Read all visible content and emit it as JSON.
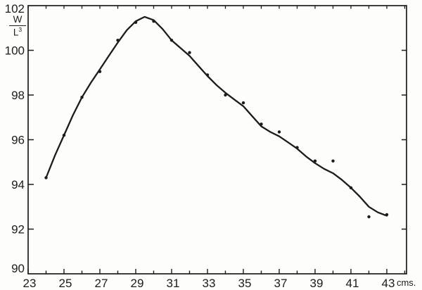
{
  "figure": {
    "background": "#fdfdfb",
    "ink": "#1c1c1c"
  },
  "chart_data": {
    "type": "line",
    "title": "",
    "subtitle": "",
    "x_unit_label": "cms.",
    "y_axis_unit": {
      "numerator": "W",
      "denominator_base": "L",
      "denominator_exponent": "3"
    },
    "xlim": [
      23,
      44.1
    ],
    "ylim": [
      90,
      102
    ],
    "grid": false,
    "legend": null,
    "x_tick_labels": [
      23,
      25,
      27,
      29,
      31,
      33,
      35,
      37,
      39,
      41,
      43
    ],
    "x_minor_ticks": [
      23,
      24,
      25,
      26,
      27,
      28,
      29,
      30,
      31,
      32,
      33,
      34,
      35,
      36,
      37,
      38,
      39,
      40,
      41,
      42,
      43,
      44
    ],
    "y_tick_labels": [
      102,
      100,
      98,
      96,
      94,
      92,
      90
    ],
    "y_side_ticks": [
      100,
      98,
      96,
      94,
      92
    ],
    "points": [
      [
        24,
        94.3
      ],
      [
        25,
        96.2
      ],
      [
        26,
        97.9
      ],
      [
        27,
        99.05
      ],
      [
        28,
        100.45
      ],
      [
        29,
        101.25
      ],
      [
        30,
        101.3
      ],
      [
        31,
        100.45
      ],
      [
        32,
        99.9
      ],
      [
        33,
        98.9
      ],
      [
        34,
        98.0
      ],
      [
        35,
        97.65
      ],
      [
        36,
        96.7
      ],
      [
        37,
        96.35
      ],
      [
        38,
        95.65
      ],
      [
        39,
        95.05
      ],
      [
        40,
        95.05
      ],
      [
        41,
        93.85
      ],
      [
        42,
        92.55
      ],
      [
        43,
        92.65
      ]
    ],
    "curve": [
      [
        24,
        94.3
      ],
      [
        24.5,
        95.3
      ],
      [
        25,
        96.2
      ],
      [
        25.5,
        97.1
      ],
      [
        26,
        97.9
      ],
      [
        26.5,
        98.55
      ],
      [
        27,
        99.15
      ],
      [
        27.5,
        99.75
      ],
      [
        28,
        100.35
      ],
      [
        28.5,
        100.9
      ],
      [
        29,
        101.3
      ],
      [
        29.5,
        101.5
      ],
      [
        30,
        101.35
      ],
      [
        30.5,
        100.95
      ],
      [
        31,
        100.45
      ],
      [
        31.5,
        100.1
      ],
      [
        32,
        99.75
      ],
      [
        32.5,
        99.3
      ],
      [
        33,
        98.85
      ],
      [
        33.5,
        98.45
      ],
      [
        34,
        98.1
      ],
      [
        34.5,
        97.8
      ],
      [
        35,
        97.5
      ],
      [
        35.5,
        97.05
      ],
      [
        36,
        96.6
      ],
      [
        36.5,
        96.35
      ],
      [
        37,
        96.15
      ],
      [
        37.5,
        95.88
      ],
      [
        38,
        95.6
      ],
      [
        38.5,
        95.25
      ],
      [
        39,
        94.95
      ],
      [
        39.5,
        94.7
      ],
      [
        40,
        94.5
      ],
      [
        40.5,
        94.2
      ],
      [
        41,
        93.85
      ],
      [
        41.5,
        93.45
      ],
      [
        42,
        93.0
      ],
      [
        42.5,
        92.75
      ],
      [
        43,
        92.6
      ]
    ]
  }
}
